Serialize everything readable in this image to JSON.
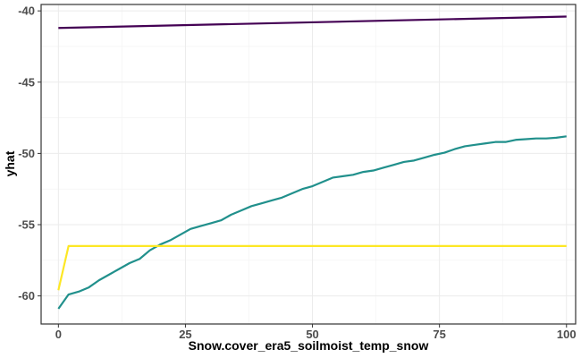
{
  "chart_data": {
    "type": "line",
    "title": "",
    "xlabel": "Snow.cover_era5_soilmoist_temp_snow",
    "ylabel": "yhat",
    "xlim": [
      -3.4,
      101.8
    ],
    "ylim": [
      -61.97,
      -39.55
    ],
    "xticks": [
      0,
      25,
      50,
      75,
      100
    ],
    "yticks": [
      -60,
      -55,
      -50,
      -45,
      -40
    ],
    "xtick_labels": [
      "0",
      "25",
      "50",
      "75",
      "100"
    ],
    "ytick_labels": [
      "-60",
      "-55",
      "-50",
      "-45",
      "-40"
    ],
    "grid": true,
    "legend": "none",
    "series": [
      {
        "color": "#440154",
        "x": [
          0,
          100
        ],
        "y": [
          -41.2,
          -40.4
        ]
      },
      {
        "color": "#21908C",
        "x": [
          0,
          2,
          4,
          6,
          8,
          10,
          12,
          14,
          16,
          18,
          20,
          22,
          24,
          26,
          28,
          30,
          32,
          34,
          36,
          38,
          40,
          42,
          44,
          46,
          48,
          50,
          52,
          54,
          56,
          58,
          60,
          62,
          64,
          66,
          68,
          70,
          72,
          74,
          76,
          78,
          80,
          82,
          84,
          86,
          88,
          90,
          92,
          94,
          96,
          98,
          100
        ],
        "y": [
          -60.9,
          -59.9,
          -59.7,
          -59.4,
          -58.9,
          -58.5,
          -58.1,
          -57.7,
          -57.4,
          -56.8,
          -56.4,
          -56.1,
          -55.7,
          -55.3,
          -55.1,
          -54.9,
          -54.7,
          -54.3,
          -54.0,
          -53.7,
          -53.5,
          -53.3,
          -53.1,
          -52.8,
          -52.5,
          -52.3,
          -52.0,
          -51.7,
          -51.6,
          -51.5,
          -51.3,
          -51.2,
          -51.0,
          -50.8,
          -50.6,
          -50.5,
          -50.3,
          -50.1,
          -49.95,
          -49.7,
          -49.5,
          -49.4,
          -49.3,
          -49.2,
          -49.2,
          -49.05,
          -49.0,
          -48.95,
          -48.95,
          -48.9,
          -48.8
        ]
      },
      {
        "color": "#FDE725",
        "x": [
          0,
          2,
          100
        ],
        "y": [
          -59.6,
          -56.5,
          -56.5
        ]
      }
    ]
  }
}
